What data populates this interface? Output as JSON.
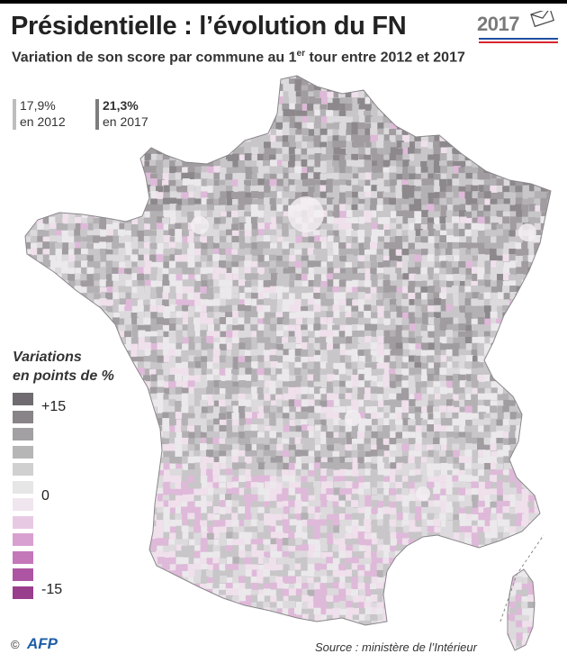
{
  "header": {
    "title": "Présidentielle : l’évolution du FN",
    "subtitle_pre": "Variation de son score par commune au 1",
    "subtitle_sup": "er",
    "subtitle_post": " tour entre 2012 et 2017",
    "badge_year": "2017"
  },
  "stats": [
    {
      "value": "17,9%",
      "label": "en 2012"
    },
    {
      "value": "21,3%",
      "label": "en 2017"
    }
  ],
  "legend": {
    "title_line1": "Variations",
    "title_line2": "en points de %",
    "labels": {
      "top": "+15",
      "mid": "0",
      "bottom": "-15"
    },
    "colors": [
      "#6f6b70",
      "#888488",
      "#a2a0a2",
      "#b7b6b7",
      "#d1d0d1",
      "#e7e6e7",
      "#f0e6ef",
      "#e8c9e4",
      "#d8a0d0",
      "#c478b9",
      "#ad55a2",
      "#993d8d"
    ]
  },
  "map": {
    "shade_colors": [
      "#8c888c",
      "#a09ca0",
      "#b4b1b4",
      "#c8c6c8",
      "#dcdadc",
      "#ebe9eb",
      "#efe0ec",
      "#dfb9d9"
    ]
  },
  "footer": {
    "copyright": "©",
    "agency": "AFP",
    "source": "Source : ministère de l’Intérieur"
  }
}
